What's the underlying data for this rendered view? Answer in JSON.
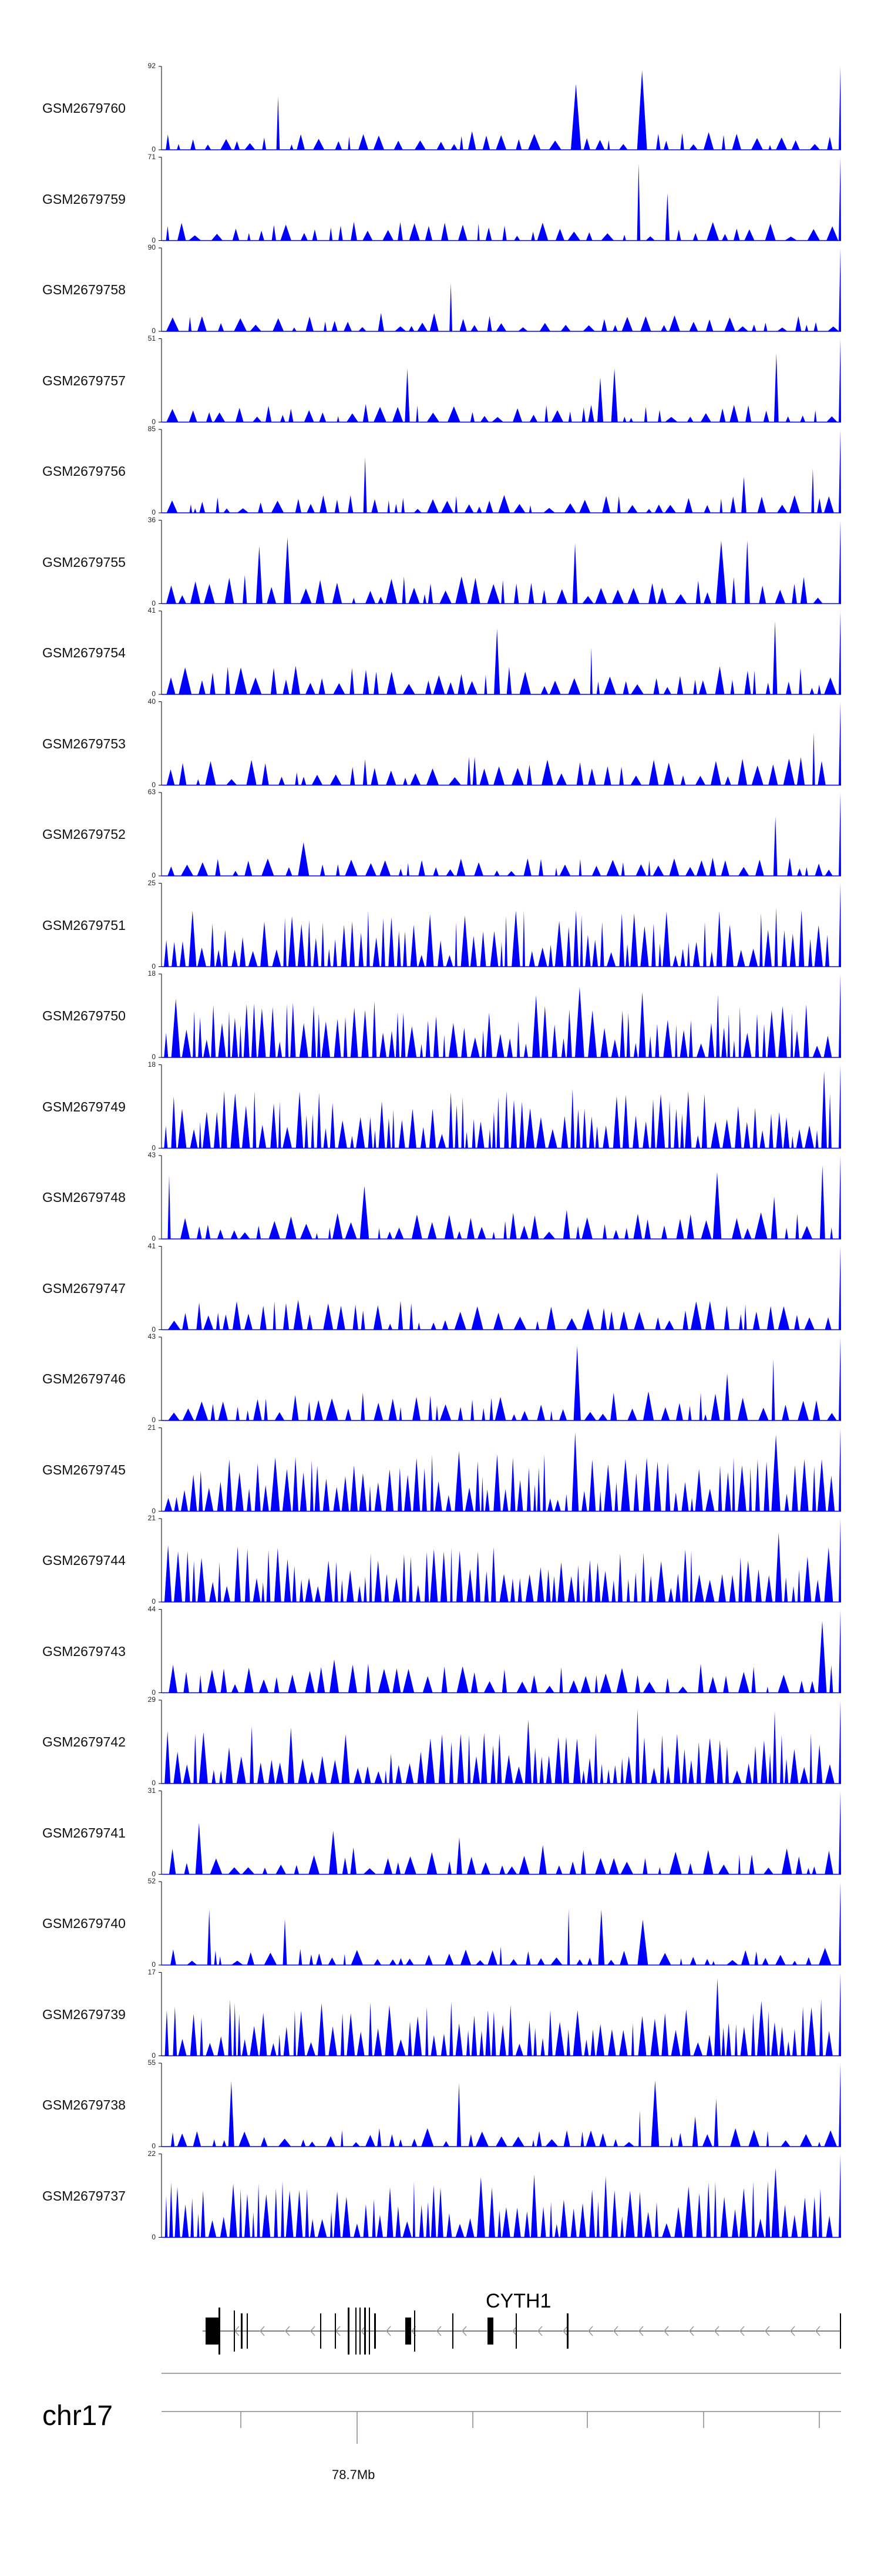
{
  "chart_data": {
    "type": "area",
    "fill_color": "#0000ff",
    "chromosome": "chr17",
    "gene": {
      "name": "CYTH1",
      "strand": "-",
      "structure_color": "#000000",
      "arrow_color": "#999999"
    },
    "axis": {
      "tick_labels": [
        "78.7Mb"
      ]
    },
    "tracks": [
      {
        "name": "GSM2679760",
        "ymax": 92,
        "ymin": 0,
        "seed": 1
      },
      {
        "name": "GSM2679759",
        "ymax": 71,
        "ymin": 0,
        "seed": 2
      },
      {
        "name": "GSM2679758",
        "ymax": 90,
        "ymin": 0,
        "seed": 3
      },
      {
        "name": "GSM2679757",
        "ymax": 51,
        "ymin": 0,
        "seed": 4
      },
      {
        "name": "GSM2679756",
        "ymax": 85,
        "ymin": 0,
        "seed": 5
      },
      {
        "name": "GSM2679755",
        "ymax": 36,
        "ymin": 0,
        "seed": 6
      },
      {
        "name": "GSM2679754",
        "ymax": 41,
        "ymin": 0,
        "seed": 7
      },
      {
        "name": "GSM2679753",
        "ymax": 40,
        "ymin": 0,
        "seed": 8
      },
      {
        "name": "GSM2679752",
        "ymax": 63,
        "ymin": 0,
        "seed": 9
      },
      {
        "name": "GSM2679751",
        "ymax": 25,
        "ymin": 0,
        "seed": 10
      },
      {
        "name": "GSM2679750",
        "ymax": 18,
        "ymin": 0,
        "seed": 11
      },
      {
        "name": "GSM2679749",
        "ymax": 18,
        "ymin": 0,
        "seed": 12
      },
      {
        "name": "GSM2679748",
        "ymax": 43,
        "ymin": 0,
        "seed": 13
      },
      {
        "name": "GSM2679747",
        "ymax": 41,
        "ymin": 0,
        "seed": 14
      },
      {
        "name": "GSM2679746",
        "ymax": 43,
        "ymin": 0,
        "seed": 15
      },
      {
        "name": "GSM2679745",
        "ymax": 21,
        "ymin": 0,
        "seed": 16
      },
      {
        "name": "GSM2679744",
        "ymax": 21,
        "ymin": 0,
        "seed": 17
      },
      {
        "name": "GSM2679743",
        "ymax": 44,
        "ymin": 0,
        "seed": 18
      },
      {
        "name": "GSM2679742",
        "ymax": 29,
        "ymin": 0,
        "seed": 19
      },
      {
        "name": "GSM2679741",
        "ymax": 31,
        "ymin": 0,
        "seed": 20
      },
      {
        "name": "GSM2679740",
        "ymax": 52,
        "ymin": 0,
        "seed": 21
      },
      {
        "name": "GSM2679739",
        "ymax": 17,
        "ymin": 0,
        "seed": 22
      },
      {
        "name": "GSM2679738",
        "ymax": 55,
        "ymin": 0,
        "seed": 23
      },
      {
        "name": "GSM2679737",
        "ymax": 22,
        "ymin": 0,
        "seed": 24
      }
    ]
  }
}
